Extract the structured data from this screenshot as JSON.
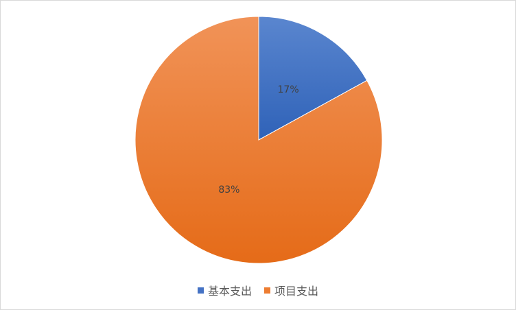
{
  "chart_data": {
    "type": "pie",
    "title": "",
    "categories": [
      "基本支出",
      "项目支出"
    ],
    "values": [
      17,
      83
    ],
    "labels": [
      "17%",
      "83%"
    ],
    "colors": [
      "#4472C4",
      "#ED7D31"
    ],
    "legend_position": "bottom"
  }
}
